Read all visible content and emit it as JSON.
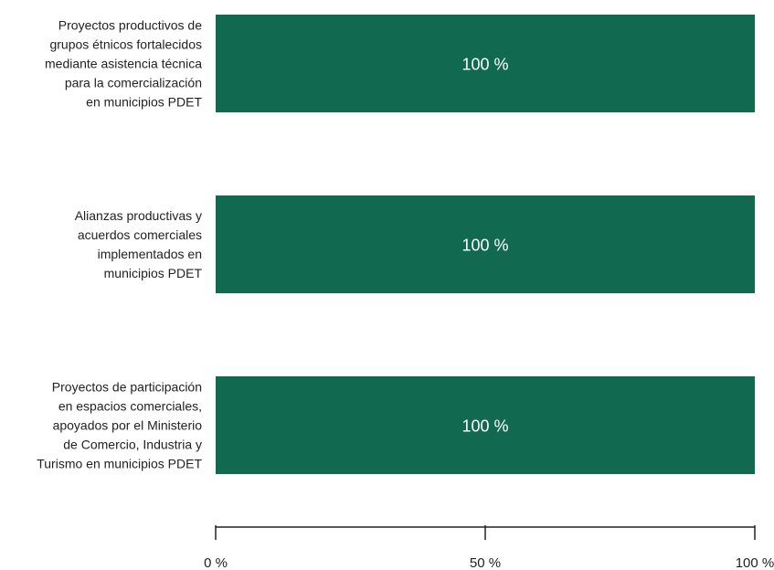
{
  "chart_data": {
    "type": "barh",
    "categories": [
      "Proyectos productivos de\ngrupos étnicos fortalecidos\nmediante asistencia técnica\npara la comercialización\nen municipios PDET",
      "Alianzas productivas y\nacuerdos comerciales\nimplementados en\nmunicipios PDET",
      "Proyectos de participación\nen espacios comerciales,\napoyados por el Ministerio\nde Comercio, Industria y\nTurismo en municipios PDET"
    ],
    "values": [
      100,
      100,
      100
    ],
    "value_labels": [
      "100 %",
      "100 %",
      "100 %"
    ],
    "color": "#116a4f",
    "xlim": [
      0,
      100
    ],
    "xticks": [
      {
        "value": 0,
        "label": "0 %"
      },
      {
        "value": 50,
        "label": "50 %"
      },
      {
        "value": 100,
        "label": "100 %"
      }
    ]
  }
}
